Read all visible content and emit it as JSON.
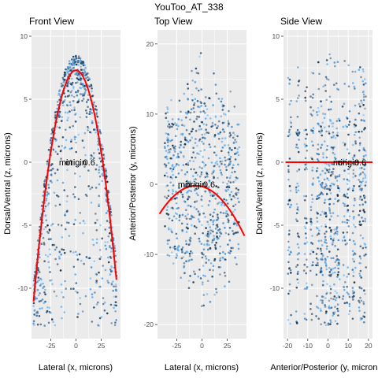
{
  "figure": {
    "title": "YouToo_AT_338"
  },
  "colors": {
    "panel_bg": "#ebebeb",
    "grid_major": "#ffffff",
    "points": [
      "#132b43",
      "#1f4e79",
      "#336a98",
      "#4a90d9",
      "#56b1f7"
    ],
    "fit": "#ff0000"
  },
  "chart_data": [
    {
      "type": "scatter",
      "title": "Front View",
      "xlabel": "Lateral (x, microns)",
      "ylabel": "Dorsal/Ventral (z, microns)",
      "xlim": [
        -44,
        44
      ],
      "ylim": [
        -14,
        10.5
      ],
      "xticks": [
        -25,
        0,
        25
      ],
      "xticklabels": [
        "-25",
        "0",
        "25"
      ],
      "yticks": [
        -10,
        -5,
        0,
        5,
        10
      ],
      "yticklabels": [
        "-10",
        "-5",
        "0",
        "5",
        "10"
      ],
      "shape": "dome",
      "fit": {
        "kind": "quadratic",
        "a": -0.0104,
        "h": 0,
        "k": 7.3,
        "x_range": [
          -42,
          40
        ]
      },
      "annotations": [
        {
          "text": "min",
          "x": -10,
          "y": 0
        },
        {
          "text": "origin",
          "x": 0,
          "y": 0
        },
        {
          "text": "0.6",
          "x": 13,
          "y": 0
        }
      ]
    },
    {
      "type": "scatter",
      "title": "Top View",
      "xlabel": "Lateral (x, microns)",
      "ylabel": "Anterior/Posterior (y, microns)",
      "xlim": [
        -44,
        44
      ],
      "ylim": [
        -22,
        22
      ],
      "xticks": [
        -25,
        0,
        25
      ],
      "xticklabels": [
        "-25",
        "0",
        "25"
      ],
      "yticks": [
        -20,
        -10,
        0,
        10,
        20
      ],
      "yticklabels": [
        "-20",
        "-10",
        "0",
        "10",
        "20"
      ],
      "shape": "spread",
      "fit": {
        "kind": "quadratic",
        "a": -0.0031,
        "h": -6,
        "k": -0.2,
        "x_range": [
          -42,
          42
        ]
      },
      "annotations": [
        {
          "text": "min",
          "x": -17,
          "y": 0
        },
        {
          "text": "origin",
          "x": -6,
          "y": 0
        },
        {
          "text": "0.6",
          "x": 7,
          "y": 0
        }
      ]
    },
    {
      "type": "scatter",
      "title": "Side View",
      "xlabel": "Anterior/Posterior (y, microns)",
      "ylabel": "Dorsal/Ventral (z, microns)",
      "xlim": [
        -22,
        22
      ],
      "ylim": [
        -14,
        10.5
      ],
      "xticks": [
        -20,
        -10,
        0,
        10,
        20
      ],
      "xticklabels": [
        "-20",
        "-10",
        "0",
        "10",
        "20"
      ],
      "yticks": [
        -10,
        -5,
        0,
        5,
        10
      ],
      "yticklabels": [
        "-10",
        "-5",
        "0",
        "5",
        "10"
      ],
      "shape": "columns",
      "fit": {
        "kind": "quadratic",
        "a": 0,
        "h": 0,
        "k": 0,
        "x_range": [
          -21,
          22
        ]
      },
      "annotations": [
        {
          "text": "min",
          "x": 6,
          "y": 0
        },
        {
          "text": "origin",
          "x": 10,
          "y": 0
        },
        {
          "text": "0.6",
          "x": 16,
          "y": 0
        }
      ]
    }
  ]
}
